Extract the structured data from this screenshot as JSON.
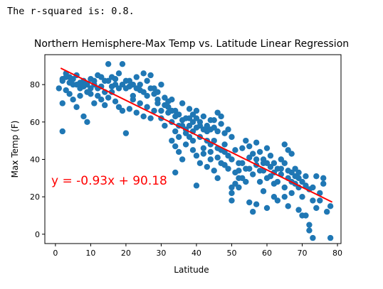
{
  "output_text": "The r-squared is: 0.8.",
  "chart_data": {
    "type": "scatter",
    "title": "Northern Hemisphere-Max Temp vs. Latitude Linear Regression",
    "xlabel": "Latitude",
    "ylabel": "Max Temp (F)",
    "xlim": [
      -3,
      81
    ],
    "ylim": [
      -5,
      96
    ],
    "xticks": [
      0,
      10,
      20,
      30,
      40,
      50,
      60,
      70,
      80
    ],
    "yticks": [
      0,
      20,
      40,
      60,
      80
    ],
    "grid": false,
    "points_color": "#1f77b4",
    "regression": {
      "slope": -0.93,
      "intercept": 90.18,
      "x_range": [
        1.5,
        78.5
      ],
      "color": "#ff0000",
      "equation": "y = -0.93x + 90.18"
    },
    "points": [
      [
        2,
        82
      ],
      [
        3,
        86
      ],
      [
        4,
        84
      ],
      [
        3,
        77
      ],
      [
        5,
        80
      ],
      [
        6,
        85
      ],
      [
        7,
        78
      ],
      [
        8,
        82
      ],
      [
        9,
        76
      ],
      [
        10,
        83
      ],
      [
        11,
        80
      ],
      [
        12,
        85
      ],
      [
        13,
        79
      ],
      [
        14,
        82
      ],
      [
        15,
        91
      ],
      [
        16,
        84
      ],
      [
        17,
        80
      ],
      [
        18,
        86
      ],
      [
        19,
        91
      ],
      [
        20,
        78
      ],
      [
        21,
        82
      ],
      [
        22,
        80
      ],
      [
        23,
        84
      ],
      [
        24,
        77
      ],
      [
        25,
        86
      ],
      [
        26,
        82
      ],
      [
        27,
        85
      ],
      [
        28,
        78
      ],
      [
        29,
        76
      ],
      [
        30,
        80
      ],
      [
        1,
        78
      ],
      [
        2,
        70
      ],
      [
        2,
        55
      ],
      [
        4,
        75
      ],
      [
        5,
        72
      ],
      [
        6,
        68
      ],
      [
        7,
        74
      ],
      [
        8,
        63
      ],
      [
        9,
        60
      ],
      [
        10,
        75
      ],
      [
        11,
        70
      ],
      [
        12,
        74
      ],
      [
        13,
        72
      ],
      [
        14,
        69
      ],
      [
        15,
        73
      ],
      [
        16,
        76
      ],
      [
        17,
        71
      ],
      [
        18,
        68
      ],
      [
        19,
        66
      ],
      [
        20,
        54
      ],
      [
        21,
        67
      ],
      [
        22,
        72
      ],
      [
        23,
        65
      ],
      [
        24,
        70
      ],
      [
        25,
        63
      ],
      [
        26,
        68
      ],
      [
        27,
        62
      ],
      [
        28,
        66
      ],
      [
        29,
        70
      ],
      [
        30,
        62
      ],
      [
        31,
        58
      ],
      [
        32,
        65
      ],
      [
        33,
        60
      ],
      [
        34,
        55
      ],
      [
        35,
        52
      ],
      [
        36,
        58
      ],
      [
        37,
        56
      ],
      [
        38,
        62
      ],
      [
        39,
        60
      ],
      [
        40,
        57
      ],
      [
        31,
        73
      ],
      [
        32,
        68
      ],
      [
        33,
        72
      ],
      [
        34,
        66
      ],
      [
        35,
        64
      ],
      [
        36,
        70
      ],
      [
        37,
        62
      ],
      [
        38,
        67
      ],
      [
        39,
        64
      ],
      [
        40,
        66
      ],
      [
        41,
        60
      ],
      [
        42,
        63
      ],
      [
        43,
        58
      ],
      [
        44,
        61
      ],
      [
        45,
        57
      ],
      [
        46,
        55
      ],
      [
        47,
        59
      ],
      [
        48,
        54
      ],
      [
        49,
        56
      ],
      [
        50,
        52
      ],
      [
        33,
        50
      ],
      [
        34,
        47
      ],
      [
        35,
        44
      ],
      [
        36,
        40
      ],
      [
        37,
        48
      ],
      [
        38,
        52
      ],
      [
        39,
        45
      ],
      [
        40,
        42
      ],
      [
        41,
        38
      ],
      [
        42,
        43
      ],
      [
        43,
        36
      ],
      [
        44,
        40
      ],
      [
        45,
        34
      ],
      [
        46,
        46
      ],
      [
        47,
        38
      ],
      [
        48,
        44
      ],
      [
        49,
        35
      ],
      [
        50,
        40
      ],
      [
        51,
        33
      ],
      [
        52,
        38
      ],
      [
        53,
        30
      ],
      [
        54,
        35
      ],
      [
        55,
        41
      ],
      [
        56,
        32
      ],
      [
        57,
        37
      ],
      [
        58,
        28
      ],
      [
        59,
        34
      ],
      [
        60,
        30
      ],
      [
        61,
        36
      ],
      [
        62,
        33
      ],
      [
        63,
        28
      ],
      [
        64,
        32
      ],
      [
        65,
        25
      ],
      [
        66,
        30
      ],
      [
        67,
        22
      ],
      [
        68,
        27
      ],
      [
        69,
        33
      ],
      [
        70,
        20
      ],
      [
        71,
        26
      ],
      [
        72,
        24
      ],
      [
        73,
        18
      ],
      [
        74,
        14
      ],
      [
        75,
        22
      ],
      [
        76,
        27
      ],
      [
        77,
        12
      ],
      [
        78,
        15
      ],
      [
        70,
        10
      ],
      [
        71,
        10
      ],
      [
        72,
        5
      ],
      [
        72,
        2
      ],
      [
        73,
        -2
      ],
      [
        78,
        -2
      ],
      [
        69,
        13
      ],
      [
        66,
        15
      ],
      [
        63,
        18
      ],
      [
        60,
        14
      ],
      [
        57,
        16
      ],
      [
        55,
        17
      ],
      [
        56,
        12
      ],
      [
        50,
        25
      ],
      [
        50,
        22
      ],
      [
        51,
        27
      ],
      [
        52,
        30
      ],
      [
        53,
        46
      ],
      [
        54,
        50
      ],
      [
        55,
        47
      ],
      [
        56,
        43
      ],
      [
        57,
        49
      ],
      [
        58,
        44
      ],
      [
        59,
        40
      ],
      [
        60,
        46
      ],
      [
        61,
        42
      ],
      [
        62,
        38
      ],
      [
        63,
        35
      ],
      [
        64,
        40
      ],
      [
        65,
        48
      ],
      [
        66,
        45
      ],
      [
        67,
        43
      ],
      [
        68,
        35
      ],
      [
        69,
        30
      ],
      [
        40,
        26
      ],
      [
        34,
        33
      ],
      [
        46,
        30
      ],
      [
        44,
        44
      ],
      [
        42,
        46
      ],
      [
        48,
        48
      ],
      [
        45,
        50
      ],
      [
        43,
        55
      ],
      [
        41,
        52
      ],
      [
        39,
        50
      ],
      [
        47,
        63
      ],
      [
        46,
        65
      ],
      [
        45,
        61
      ],
      [
        44,
        56
      ],
      [
        43,
        50
      ],
      [
        42,
        56
      ],
      [
        41,
        58
      ],
      [
        40,
        62
      ],
      [
        39,
        55
      ],
      [
        38,
        58
      ],
      [
        37,
        54
      ],
      [
        36,
        61
      ],
      [
        35,
        58
      ],
      [
        34,
        63
      ],
      [
        33,
        66
      ],
      [
        32,
        71
      ],
      [
        31,
        69
      ],
      [
        30,
        66
      ],
      [
        29,
        72
      ],
      [
        28,
        75
      ],
      [
        27,
        78
      ],
      [
        26,
        74
      ],
      [
        25,
        76
      ],
      [
        24,
        80
      ],
      [
        23,
        78
      ],
      [
        22,
        74
      ],
      [
        21,
        79
      ],
      [
        20,
        82
      ],
      [
        19,
        80
      ],
      [
        18,
        78
      ],
      [
        17,
        83
      ],
      [
        16,
        79
      ],
      [
        15,
        82
      ],
      [
        14,
        76
      ],
      [
        13,
        84
      ],
      [
        12,
        78
      ],
      [
        11,
        82
      ],
      [
        10,
        78
      ],
      [
        9,
        80
      ],
      [
        8,
        79
      ],
      [
        7,
        81
      ],
      [
        6,
        80
      ],
      [
        5,
        83
      ],
      [
        4,
        81
      ],
      [
        3,
        84
      ],
      [
        2,
        83
      ],
      [
        58,
        34
      ],
      [
        59,
        38
      ],
      [
        61,
        31
      ],
      [
        62,
        27
      ],
      [
        64,
        35
      ],
      [
        65,
        38
      ],
      [
        67,
        33
      ],
      [
        68,
        31
      ],
      [
        52,
        34
      ],
      [
        53,
        38
      ],
      [
        54,
        28
      ],
      [
        57,
        40
      ],
      [
        49,
        42
      ],
      [
        48,
        37
      ],
      [
        47,
        45
      ],
      [
        46,
        41
      ],
      [
        44,
        48
      ],
      [
        51,
        45
      ],
      [
        55,
        35
      ],
      [
        60,
        38
      ],
      [
        66,
        34
      ],
      [
        70,
        28
      ],
      [
        71,
        31
      ],
      [
        74,
        31
      ],
      [
        73,
        25
      ],
      [
        75,
        18
      ],
      [
        76,
        30
      ],
      [
        50,
        18
      ],
      [
        52,
        25
      ],
      [
        59,
        23
      ],
      [
        62,
        20
      ],
      [
        65,
        20
      ],
      [
        67,
        28
      ],
      [
        69,
        25
      ]
    ]
  }
}
